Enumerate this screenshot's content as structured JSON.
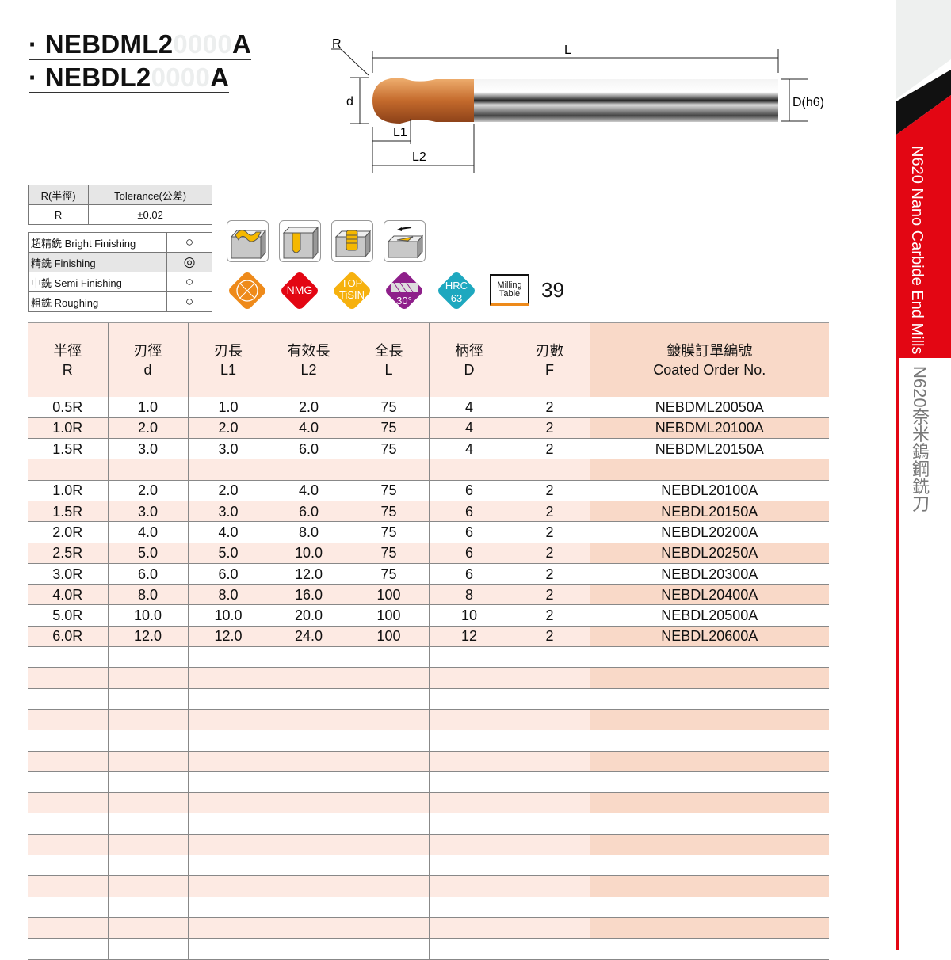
{
  "titles": [
    {
      "bullet": "·",
      "prefix": "NEBDML2",
      "ghost": "0000",
      "suffix": "A"
    },
    {
      "bullet": "·",
      "prefix": "NEBDL2",
      "ghost": "0000",
      "suffix": "A"
    }
  ],
  "diagram": {
    "R": "R",
    "L": "L",
    "d": "d",
    "D": "D(h6)",
    "L1": "L1",
    "L2": "L2"
  },
  "tolerance": {
    "headers": [
      "R(半徑)",
      "Tolerance(公差)"
    ],
    "values": [
      "R",
      "±0.02"
    ]
  },
  "finishing": [
    {
      "label": "超精銑 Bright Finishing",
      "mark": "○"
    },
    {
      "label": "精銑 Finishing",
      "mark": "◎"
    },
    {
      "label": "中銑 Semi Finishing",
      "mark": "○"
    },
    {
      "label": "粗銑 Roughing",
      "mark": "○"
    }
  ],
  "application_icons": [
    "contour-milling-icon",
    "slot-milling-icon",
    "helical-milling-icon",
    "face-milling-icon"
  ],
  "badges": {
    "flutes_icon": "ball-nose-icon",
    "nmg": "NMG",
    "coating": [
      "TOP",
      "TiSIN"
    ],
    "helix": "30°",
    "hrc": [
      "HRC",
      "63"
    ],
    "milling_table": [
      "Milling",
      "Table"
    ],
    "page_ref": "39",
    "colors": {
      "orange": "#ee8a1a",
      "red": "#e30613",
      "yellow": "#f6b10e",
      "purple": "#8e1f8a",
      "teal": "#1ea8bf"
    }
  },
  "table": {
    "headers": [
      [
        "半徑",
        "R"
      ],
      [
        "刃徑",
        "d"
      ],
      [
        "刃長",
        "L1"
      ],
      [
        "有效長",
        "L2"
      ],
      [
        "全長",
        "L"
      ],
      [
        "柄徑",
        "D"
      ],
      [
        "刃數",
        "F"
      ],
      [
        "鍍膜訂單編號",
        "Coated Order No."
      ]
    ],
    "rows": [
      [
        "0.5R",
        "1.0",
        "1.0",
        "2.0",
        "75",
        "4",
        "2",
        "NEBDML20050A"
      ],
      [
        "1.0R",
        "2.0",
        "2.0",
        "4.0",
        "75",
        "4",
        "2",
        "NEBDML20100A"
      ],
      [
        "1.5R",
        "3.0",
        "3.0",
        "6.0",
        "75",
        "4",
        "2",
        "NEBDML20150A"
      ],
      [
        "",
        "",
        "",
        "",
        "",
        "",
        "",
        ""
      ],
      [
        "1.0R",
        "2.0",
        "2.0",
        "4.0",
        "75",
        "6",
        "2",
        "NEBDL20100A"
      ],
      [
        "1.5R",
        "3.0",
        "3.0",
        "6.0",
        "75",
        "6",
        "2",
        "NEBDL20150A"
      ],
      [
        "2.0R",
        "4.0",
        "4.0",
        "8.0",
        "75",
        "6",
        "2",
        "NEBDL20200A"
      ],
      [
        "2.5R",
        "5.0",
        "5.0",
        "10.0",
        "75",
        "6",
        "2",
        "NEBDL20250A"
      ],
      [
        "3.0R",
        "6.0",
        "6.0",
        "12.0",
        "75",
        "6",
        "2",
        "NEBDL20300A"
      ],
      [
        "4.0R",
        "8.0",
        "8.0",
        "16.0",
        "100",
        "8",
        "2",
        "NEBDL20400A"
      ],
      [
        "5.0R",
        "10.0",
        "10.0",
        "20.0",
        "100",
        "10",
        "2",
        "NEBDL20500A"
      ],
      [
        "6.0R",
        "12.0",
        "12.0",
        "24.0",
        "100",
        "12",
        "2",
        "NEBDL20600A"
      ]
    ]
  },
  "sidebar": {
    "english": "N620 Nano Carbide End Mills",
    "chinese": "N620奈米鎢鋼銑刀",
    "accent": "#e30613"
  }
}
